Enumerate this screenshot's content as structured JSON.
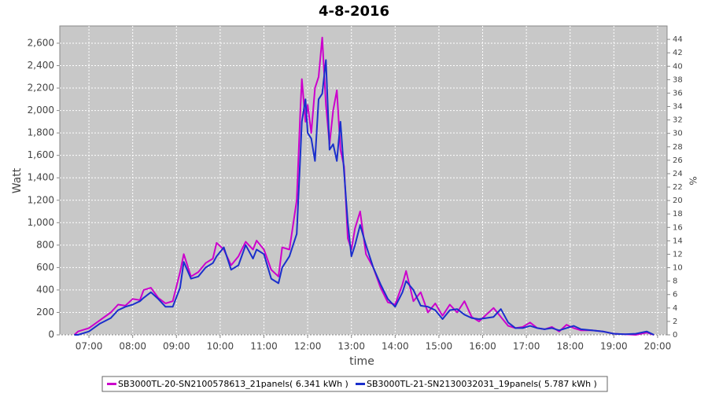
{
  "chart_data": {
    "type": "line",
    "title": "4-8-2016",
    "xlabel": "time",
    "ylabel": "Watt",
    "y2label": "%",
    "x": [
      "06:40",
      "06:45",
      "07:00",
      "07:15",
      "07:30",
      "07:40",
      "07:50",
      "08:00",
      "08:10",
      "08:15",
      "08:25",
      "08:35",
      "08:45",
      "08:55",
      "09:05",
      "09:10",
      "09:20",
      "09:30",
      "09:40",
      "09:50",
      "09:55",
      "10:05",
      "10:15",
      "10:25",
      "10:35",
      "10:45",
      "10:50",
      "11:00",
      "11:10",
      "11:20",
      "11:25",
      "11:35",
      "11:45",
      "11:50",
      "11:52",
      "11:57",
      "12:00",
      "12:05",
      "12:10",
      "12:15",
      "12:20",
      "12:25",
      "12:30",
      "12:35",
      "12:40",
      "12:45",
      "12:50",
      "12:55",
      "13:00",
      "13:05",
      "13:12",
      "13:20",
      "13:30",
      "13:40",
      "13:50",
      "14:00",
      "14:10",
      "14:15",
      "14:25",
      "14:35",
      "14:45",
      "14:55",
      "15:05",
      "15:15",
      "15:25",
      "15:35",
      "15:45",
      "15:55",
      "16:05",
      "16:15",
      "16:25",
      "16:35",
      "16:45",
      "16:55",
      "17:05",
      "17:15",
      "17:25",
      "17:35",
      "17:45",
      "17:55",
      "18:05",
      "18:15",
      "18:30",
      "18:45",
      "19:00",
      "19:15",
      "19:30",
      "19:45",
      "19:55"
    ],
    "series": [
      {
        "name": "SB3000TL-20-SN2100578613_21panels( 6.341 kWh )",
        "color": "#cc00cc",
        "values": [
          0,
          30,
          60,
          130,
          200,
          270,
          260,
          320,
          310,
          400,
          420,
          330,
          280,
          300,
          560,
          720,
          520,
          560,
          640,
          680,
          820,
          760,
          620,
          700,
          830,
          760,
          840,
          760,
          580,
          520,
          780,
          760,
          1200,
          2000,
          2280,
          1900,
          2050,
          1800,
          2200,
          2300,
          2650,
          2050,
          1700,
          2000,
          2180,
          1650,
          1500,
          860,
          760,
          950,
          1100,
          720,
          600,
          420,
          290,
          270,
          450,
          570,
          300,
          380,
          200,
          280,
          170,
          270,
          200,
          300,
          160,
          120,
          180,
          240,
          160,
          80,
          60,
          70,
          110,
          60,
          50,
          70,
          30,
          90,
          60,
          40,
          40,
          30,
          10,
          5,
          0,
          20,
          0
        ]
      },
      {
        "name": "SB3000TL-21-SN2130032031_19panels( 5.787 kWh )",
        "color": "#1a2fcc",
        "values": [
          0,
          0,
          30,
          100,
          150,
          220,
          250,
          270,
          300,
          330,
          380,
          320,
          250,
          250,
          420,
          650,
          500,
          520,
          600,
          640,
          700,
          780,
          580,
          620,
          800,
          680,
          760,
          720,
          500,
          460,
          600,
          700,
          900,
          1600,
          1900,
          2100,
          1800,
          1750,
          1550,
          2100,
          2150,
          2450,
          1650,
          1700,
          1550,
          1900,
          1450,
          1000,
          700,
          800,
          980,
          800,
          600,
          450,
          320,
          250,
          380,
          480,
          400,
          260,
          250,
          220,
          140,
          220,
          230,
          180,
          150,
          140,
          150,
          160,
          230,
          110,
          60,
          60,
          80,
          60,
          50,
          60,
          40,
          60,
          80,
          50,
          40,
          30,
          10,
          5,
          10,
          30,
          0
        ]
      }
    ],
    "xlim": [
      "06:20",
      "20:13"
    ],
    "xticks": [
      "07:00",
      "08:00",
      "09:00",
      "10:00",
      "11:00",
      "12:00",
      "13:00",
      "14:00",
      "15:00",
      "16:00",
      "17:00",
      "18:00",
      "19:00",
      "20:00"
    ],
    "ylim": [
      0,
      2754
    ],
    "yticks": [
      0,
      200,
      400,
      600,
      800,
      {
        "value": 1000,
        "label": "1,000"
      },
      {
        "value": 1200,
        "label": "1,200"
      },
      {
        "value": 1400,
        "label": "1,400"
      },
      {
        "value": 1600,
        "label": "1,600"
      },
      {
        "value": 1800,
        "label": "1,800"
      },
      {
        "value": 2000,
        "label": "2,000"
      },
      {
        "value": 2200,
        "label": "2,200"
      },
      {
        "value": 2400,
        "label": "2,400"
      },
      {
        "value": 2600,
        "label": "2,600"
      }
    ],
    "y2lim": [
      0,
      46
    ],
    "y2ticks": [
      0,
      2,
      4,
      6,
      8,
      10,
      12,
      14,
      16,
      18,
      20,
      22,
      24,
      26,
      28,
      30,
      32,
      34,
      36,
      38,
      40,
      42,
      44
    ],
    "grid": true
  }
}
